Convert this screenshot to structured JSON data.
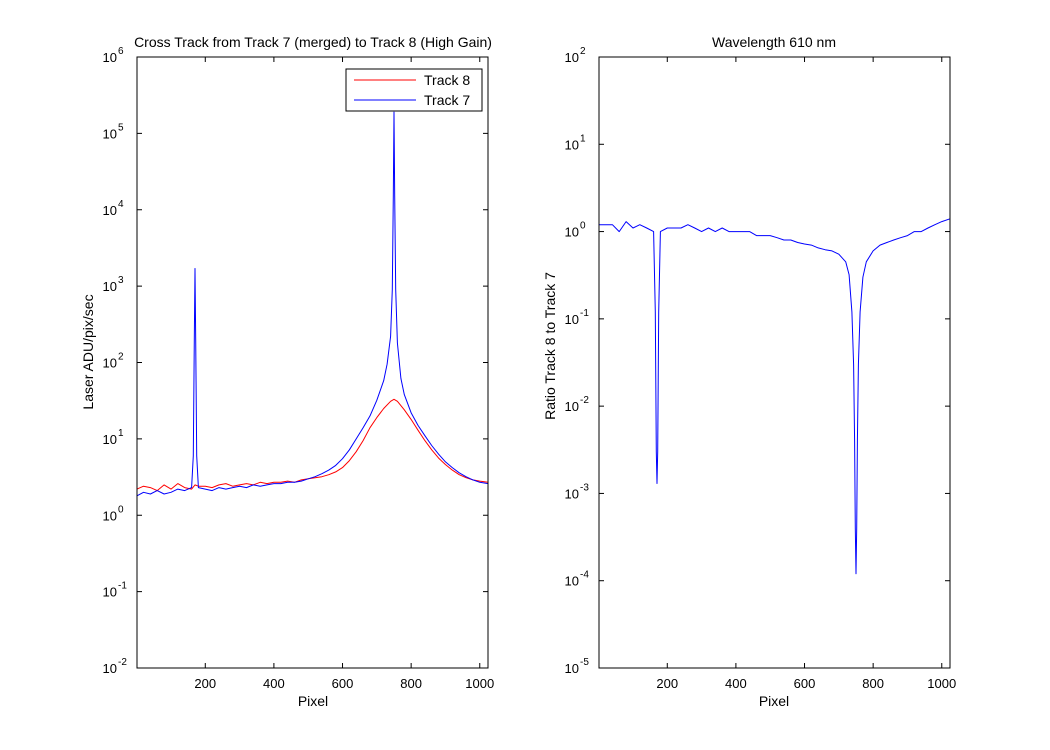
{
  "chart_data": [
    {
      "type": "line",
      "title": "Cross Track from Track 7 (merged) to Track 8 (High Gain)",
      "xlabel": "Pixel",
      "ylabel": "Laser ADU/pix/sec",
      "xlim": [
        1,
        1024
      ],
      "ylim": [
        0.01,
        1000000
      ],
      "yscale": "log",
      "xticks": [
        200,
        400,
        600,
        800,
        1000
      ],
      "yticks": [
        {
          "base": "10",
          "exp": "-2",
          "value": 0.01
        },
        {
          "base": "10",
          "exp": "-1",
          "value": 0.1
        },
        {
          "base": "10",
          "exp": "0",
          "value": 1
        },
        {
          "base": "10",
          "exp": "1",
          "value": 10
        },
        {
          "base": "10",
          "exp": "2",
          "value": 100
        },
        {
          "base": "10",
          "exp": "3",
          "value": 1000
        },
        {
          "base": "10",
          "exp": "4",
          "value": 10000
        },
        {
          "base": "10",
          "exp": "5",
          "value": 100000
        },
        {
          "base": "10",
          "exp": "6",
          "value": 1000000
        }
      ],
      "grid": false,
      "legend_position": "top-right",
      "series": [
        {
          "name": "Track 8",
          "color": "#ff0000",
          "x": [
            1,
            20,
            40,
            60,
            80,
            100,
            120,
            140,
            160,
            170,
            180,
            200,
            220,
            240,
            260,
            280,
            300,
            320,
            340,
            360,
            380,
            400,
            420,
            440,
            460,
            480,
            500,
            520,
            540,
            560,
            580,
            600,
            620,
            640,
            660,
            680,
            700,
            720,
            740,
            750,
            760,
            780,
            800,
            820,
            840,
            860,
            880,
            900,
            920,
            940,
            960,
            980,
            1000,
            1024
          ],
          "y": [
            2.2,
            2.4,
            2.3,
            2.1,
            2.5,
            2.2,
            2.6,
            2.3,
            2.2,
            2.5,
            2.4,
            2.4,
            2.3,
            2.5,
            2.6,
            2.4,
            2.5,
            2.6,
            2.5,
            2.7,
            2.6,
            2.7,
            2.7,
            2.8,
            2.7,
            2.9,
            3.0,
            3.1,
            3.2,
            3.4,
            3.7,
            4.2,
            5.2,
            6.8,
            9.5,
            14,
            19,
            25,
            31,
            33,
            31,
            24,
            18,
            13,
            9.5,
            7.2,
            5.6,
            4.6,
            3.9,
            3.4,
            3.1,
            2.9,
            2.8,
            2.7
          ]
        },
        {
          "name": "Track 7",
          "color": "#0000ff",
          "x": [
            1,
            20,
            40,
            60,
            80,
            100,
            120,
            140,
            160,
            165,
            168,
            170,
            172,
            175,
            180,
            200,
            220,
            240,
            260,
            280,
            300,
            320,
            340,
            360,
            380,
            400,
            420,
            440,
            460,
            480,
            500,
            520,
            540,
            560,
            580,
            600,
            620,
            640,
            660,
            680,
            700,
            720,
            730,
            740,
            745,
            748,
            750,
            752,
            755,
            760,
            770,
            780,
            800,
            820,
            840,
            860,
            880,
            900,
            920,
            940,
            960,
            980,
            1000,
            1024
          ],
          "y": [
            1.8,
            2.0,
            1.9,
            2.1,
            1.9,
            2.0,
            2.2,
            2.1,
            2.3,
            6,
            200,
            1700,
            200,
            6,
            2.3,
            2.2,
            2.1,
            2.3,
            2.2,
            2.3,
            2.4,
            2.3,
            2.5,
            2.4,
            2.5,
            2.6,
            2.6,
            2.7,
            2.7,
            2.8,
            3.0,
            3.2,
            3.5,
            3.9,
            4.5,
            5.5,
            7.2,
            10,
            14,
            20,
            32,
            58,
            95,
            220,
            900,
            15000,
            190000,
            15000,
            900,
            180,
            62,
            38,
            22,
            15,
            11,
            8.2,
            6.3,
            5.0,
            4.2,
            3.6,
            3.2,
            2.9,
            2.7,
            2.6
          ]
        }
      ]
    },
    {
      "type": "line",
      "title": "Wavelength 610 nm",
      "xlabel": "Pixel",
      "ylabel": "Ratio Track 8 to Track 7",
      "xlim": [
        1,
        1024
      ],
      "ylim": [
        1e-05,
        100
      ],
      "yscale": "log",
      "xticks": [
        200,
        400,
        600,
        800,
        1000
      ],
      "yticks": [
        {
          "base": "10",
          "exp": "-5",
          "value": 1e-05
        },
        {
          "base": "10",
          "exp": "-4",
          "value": 0.0001
        },
        {
          "base": "10",
          "exp": "-3",
          "value": 0.001
        },
        {
          "base": "10",
          "exp": "-2",
          "value": 0.01
        },
        {
          "base": "10",
          "exp": "-1",
          "value": 0.1
        },
        {
          "base": "10",
          "exp": "0",
          "value": 1
        },
        {
          "base": "10",
          "exp": "1",
          "value": 10
        },
        {
          "base": "10",
          "exp": "2",
          "value": 100
        }
      ],
      "grid": false,
      "series": [
        {
          "color": "#0000ff",
          "x": [
            1,
            20,
            40,
            60,
            80,
            100,
            120,
            140,
            160,
            165,
            168,
            170,
            172,
            175,
            180,
            200,
            220,
            240,
            260,
            280,
            300,
            320,
            340,
            360,
            380,
            400,
            420,
            440,
            460,
            480,
            500,
            520,
            540,
            560,
            580,
            600,
            620,
            640,
            660,
            680,
            700,
            720,
            730,
            738,
            743,
            746,
            748,
            750,
            752,
            754,
            757,
            762,
            770,
            780,
            800,
            820,
            840,
            860,
            880,
            900,
            920,
            940,
            960,
            980,
            1000,
            1024
          ],
          "y": [
            1.2,
            1.2,
            1.2,
            1.0,
            1.3,
            1.1,
            1.2,
            1.1,
            1.0,
            0.12,
            0.003,
            0.0013,
            0.003,
            0.12,
            1.0,
            1.1,
            1.1,
            1.1,
            1.2,
            1.1,
            1.0,
            1.1,
            1.0,
            1.1,
            1.0,
            1.0,
            1.0,
            1.0,
            0.9,
            0.9,
            0.9,
            0.85,
            0.8,
            0.8,
            0.75,
            0.72,
            0.7,
            0.65,
            0.62,
            0.6,
            0.55,
            0.45,
            0.32,
            0.12,
            0.03,
            0.004,
            0.0004,
            0.00012,
            0.0004,
            0.004,
            0.03,
            0.12,
            0.3,
            0.45,
            0.6,
            0.7,
            0.75,
            0.8,
            0.85,
            0.9,
            1.0,
            1.0,
            1.1,
            1.2,
            1.3,
            1.4
          ]
        }
      ]
    }
  ]
}
